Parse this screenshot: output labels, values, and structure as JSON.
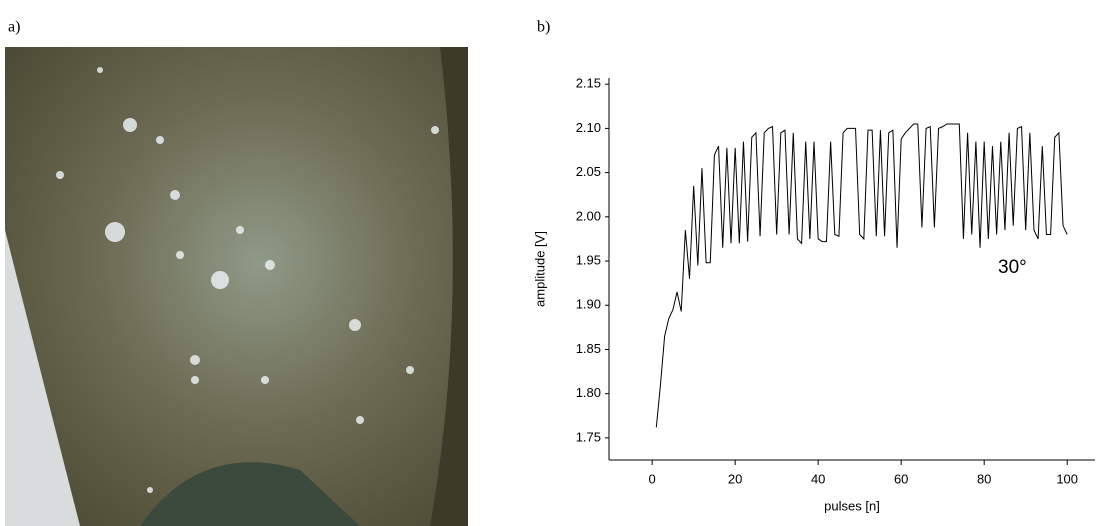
{
  "labels": {
    "a": "a)",
    "b": "b)"
  },
  "chart_data": {
    "type": "line",
    "x_label": "pulses [n]",
    "y_label": "amplitude [V]",
    "annotation": "30°",
    "color": "#000000",
    "x": [
      1,
      2,
      3,
      4,
      5,
      6,
      7,
      8,
      9,
      10,
      11,
      12,
      13,
      14,
      15,
      16,
      17,
      18,
      19,
      20,
      21,
      22,
      23,
      24,
      25,
      26,
      27,
      28,
      29,
      30,
      31,
      32,
      33,
      34,
      35,
      36,
      37,
      38,
      39,
      40,
      41,
      42,
      43,
      44,
      45,
      46,
      47,
      48,
      49,
      50,
      51,
      52,
      53,
      54,
      55,
      56,
      57,
      58,
      59,
      60,
      61,
      62,
      63,
      64,
      65,
      66,
      67,
      68,
      69,
      70,
      71,
      72,
      73,
      74,
      75,
      76,
      77,
      78,
      79,
      80,
      81,
      82,
      83,
      84,
      85,
      86,
      87,
      88,
      89,
      90,
      91,
      92,
      93,
      94,
      95,
      96,
      97,
      98,
      99,
      100
    ],
    "values": [
      1.762,
      1.81,
      1.865,
      1.885,
      1.895,
      1.915,
      1.893,
      1.985,
      1.93,
      2.035,
      1.945,
      2.055,
      1.948,
      1.948,
      2.07,
      2.08,
      1.965,
      2.078,
      1.97,
      2.078,
      1.97,
      2.085,
      1.972,
      2.09,
      2.095,
      1.978,
      2.095,
      2.1,
      2.102,
      1.98,
      2.095,
      2.098,
      1.98,
      2.095,
      1.975,
      1.97,
      2.085,
      1.975,
      2.085,
      1.975,
      1.972,
      1.972,
      2.085,
      1.98,
      1.978,
      2.095,
      2.1,
      2.1,
      2.1,
      1.98,
      1.975,
      2.098,
      2.098,
      1.978,
      2.098,
      1.978,
      2.095,
      2.098,
      1.965,
      2.088,
      2.095,
      2.1,
      2.105,
      2.105,
      1.988,
      2.1,
      2.102,
      1.988,
      2.1,
      2.102,
      2.105,
      2.105,
      2.105,
      2.105,
      1.975,
      2.095,
      1.98,
      2.085,
      1.965,
      2.085,
      1.975,
      2.08,
      1.98,
      2.085,
      1.985,
      2.095,
      1.99,
      2.1,
      2.102,
      1.985,
      2.095,
      1.985,
      1.975,
      2.08,
      1.98,
      1.98,
      2.09,
      2.095,
      1.99,
      1.98
    ],
    "xlim": [
      -10.4,
      106.7
    ],
    "xticks": [
      0,
      20,
      40,
      60,
      80,
      100
    ],
    "ylim": [
      1.725,
      2.157
    ],
    "yticks": [
      1.75,
      {
        "value": 1.8,
        "label": "1.80"
      },
      1.85,
      {
        "value": 1.9,
        "label": "1.90"
      },
      1.95,
      {
        "value": 2.0,
        "label": "2.00"
      },
      2.05,
      {
        "value": 2.1,
        "label": "2.10"
      },
      2.15
    ]
  }
}
